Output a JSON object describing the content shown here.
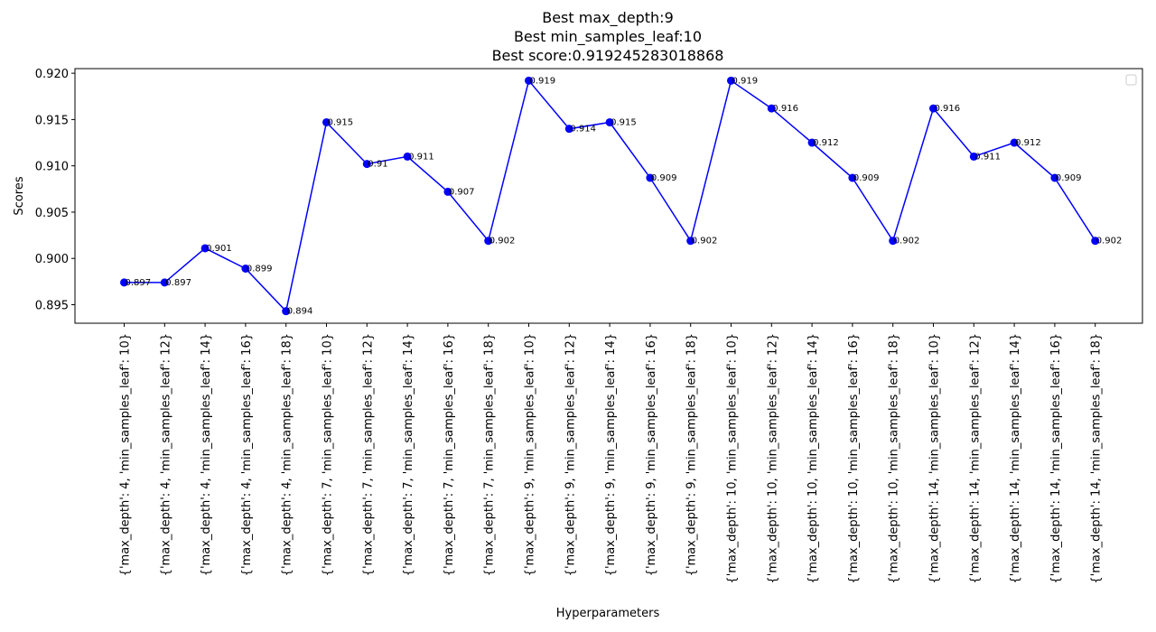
{
  "chart_data": {
    "type": "line",
    "title_lines": [
      "Best max_depth:9",
      "Best min_samples_leaf:10",
      "Best score:0.919245283018868"
    ],
    "xlabel": "Hyperparameters",
    "ylabel": "Scores",
    "ylim": [
      0.893,
      0.9205
    ],
    "yticks": [
      0.895,
      0.9,
      0.905,
      0.91,
      0.915,
      0.92
    ],
    "ytick_labels": [
      "0.895",
      "0.900",
      "0.905",
      "0.910",
      "0.915",
      "0.920"
    ],
    "grid": false,
    "legend": "top-right (empty)",
    "line_color": "#0000ff",
    "categories": [
      "{'max_depth': 4, 'min_samples_leaf': 10}",
      "{'max_depth': 4, 'min_samples_leaf': 12}",
      "{'max_depth': 4, 'min_samples_leaf': 14}",
      "{'max_depth': 4, 'min_samples_leaf': 16}",
      "{'max_depth': 4, 'min_samples_leaf': 18}",
      "{'max_depth': 7, 'min_samples_leaf': 10}",
      "{'max_depth': 7, 'min_samples_leaf': 12}",
      "{'max_depth': 7, 'min_samples_leaf': 14}",
      "{'max_depth': 7, 'min_samples_leaf': 16}",
      "{'max_depth': 7, 'min_samples_leaf': 18}",
      "{'max_depth': 9, 'min_samples_leaf': 10}",
      "{'max_depth': 9, 'min_samples_leaf': 12}",
      "{'max_depth': 9, 'min_samples_leaf': 14}",
      "{'max_depth': 9, 'min_samples_leaf': 16}",
      "{'max_depth': 9, 'min_samples_leaf': 18}",
      "{'max_depth': 10, 'min_samples_leaf': 10}",
      "{'max_depth': 10, 'min_samples_leaf': 12}",
      "{'max_depth': 10, 'min_samples_leaf': 14}",
      "{'max_depth': 10, 'min_samples_leaf': 16}",
      "{'max_depth': 10, 'min_samples_leaf': 18}",
      "{'max_depth': 14, 'min_samples_leaf': 10}",
      "{'max_depth': 14, 'min_samples_leaf': 12}",
      "{'max_depth': 14, 'min_samples_leaf': 14}",
      "{'max_depth': 14, 'min_samples_leaf': 16}",
      "{'max_depth': 14, 'min_samples_leaf': 18}"
    ],
    "values": [
      0.8974,
      0.8974,
      0.9011,
      0.8989,
      0.8943,
      0.9147,
      0.9102,
      0.911,
      0.9072,
      0.9019,
      0.9192,
      0.914,
      0.9147,
      0.9087,
      0.9019,
      0.9192,
      0.9162,
      0.9125,
      0.9087,
      0.9019,
      0.9162,
      0.911,
      0.9125,
      0.9087,
      0.9019
    ],
    "data_labels": [
      "0.897",
      "0.897",
      "0.901",
      "0.899",
      "0.894",
      "0.915",
      "0.91",
      "0.911",
      "0.907",
      "0.902",
      "0.919",
      "0.914",
      "0.915",
      "0.909",
      "0.902",
      "0.919",
      "0.916",
      "0.912",
      "0.909",
      "0.902",
      "0.916",
      "0.911",
      "0.912",
      "0.909",
      "0.902"
    ]
  }
}
